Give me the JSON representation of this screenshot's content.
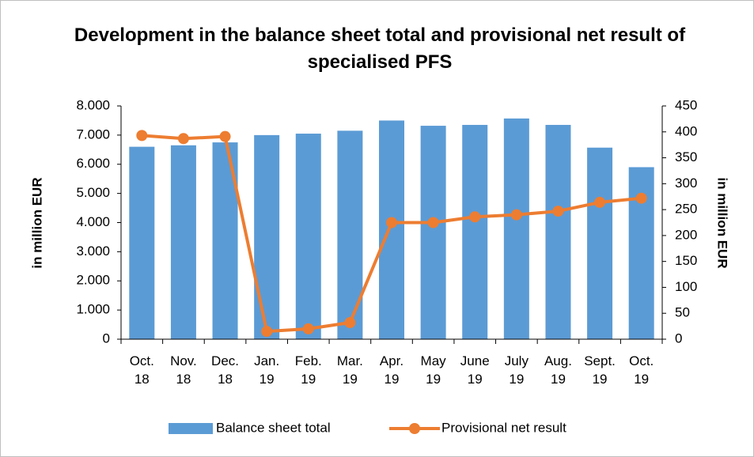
{
  "chart_data": {
    "type": "bar-line",
    "title": "Development in the balance sheet total and provisional net result of specialised PFS",
    "ylabel": "in million EUR",
    "y2label": "in million EUR",
    "categories": [
      "Oct.\n18",
      "Nov.\n18",
      "Dec.\n18",
      "Jan.\n19",
      "Feb.\n19",
      "Mar.\n19",
      "Apr.\n19",
      "May\n19",
      "June\n19",
      "July\n19",
      "Aug.\n19",
      "Sept.\n19",
      "Oct.\n19"
    ],
    "series": [
      {
        "name": "Balance sheet total",
        "type": "bar",
        "color": "#5b9bd5",
        "values": [
          6600,
          6650,
          6750,
          7000,
          7050,
          7150,
          7500,
          7320,
          7350,
          7570,
          7350,
          6570,
          5900
        ]
      },
      {
        "name": "Provisional net result",
        "type": "line",
        "axis": "y2",
        "color": "#ed7d31",
        "values": [
          393,
          387,
          391,
          15,
          20,
          32,
          225,
          225,
          236,
          240,
          247,
          264,
          272
        ]
      }
    ],
    "ylim": [
      0,
      8000
    ],
    "yticks": [
      0,
      {
        "value": 1000,
        "label": "1.000"
      },
      {
        "value": 2000,
        "label": "2.000"
      },
      {
        "value": 3000,
        "label": "3.000"
      },
      {
        "value": 4000,
        "label": "4.000"
      },
      {
        "value": 5000,
        "label": "5.000"
      },
      {
        "value": 6000,
        "label": "6.000"
      },
      {
        "value": 7000,
        "label": "7.000"
      },
      {
        "value": 8000,
        "label": "8.000"
      }
    ],
    "y2lim": [
      0,
      450
    ],
    "y2ticks": [
      0,
      50,
      100,
      150,
      200,
      250,
      300,
      350,
      400,
      450
    ],
    "legend": "bottom"
  }
}
